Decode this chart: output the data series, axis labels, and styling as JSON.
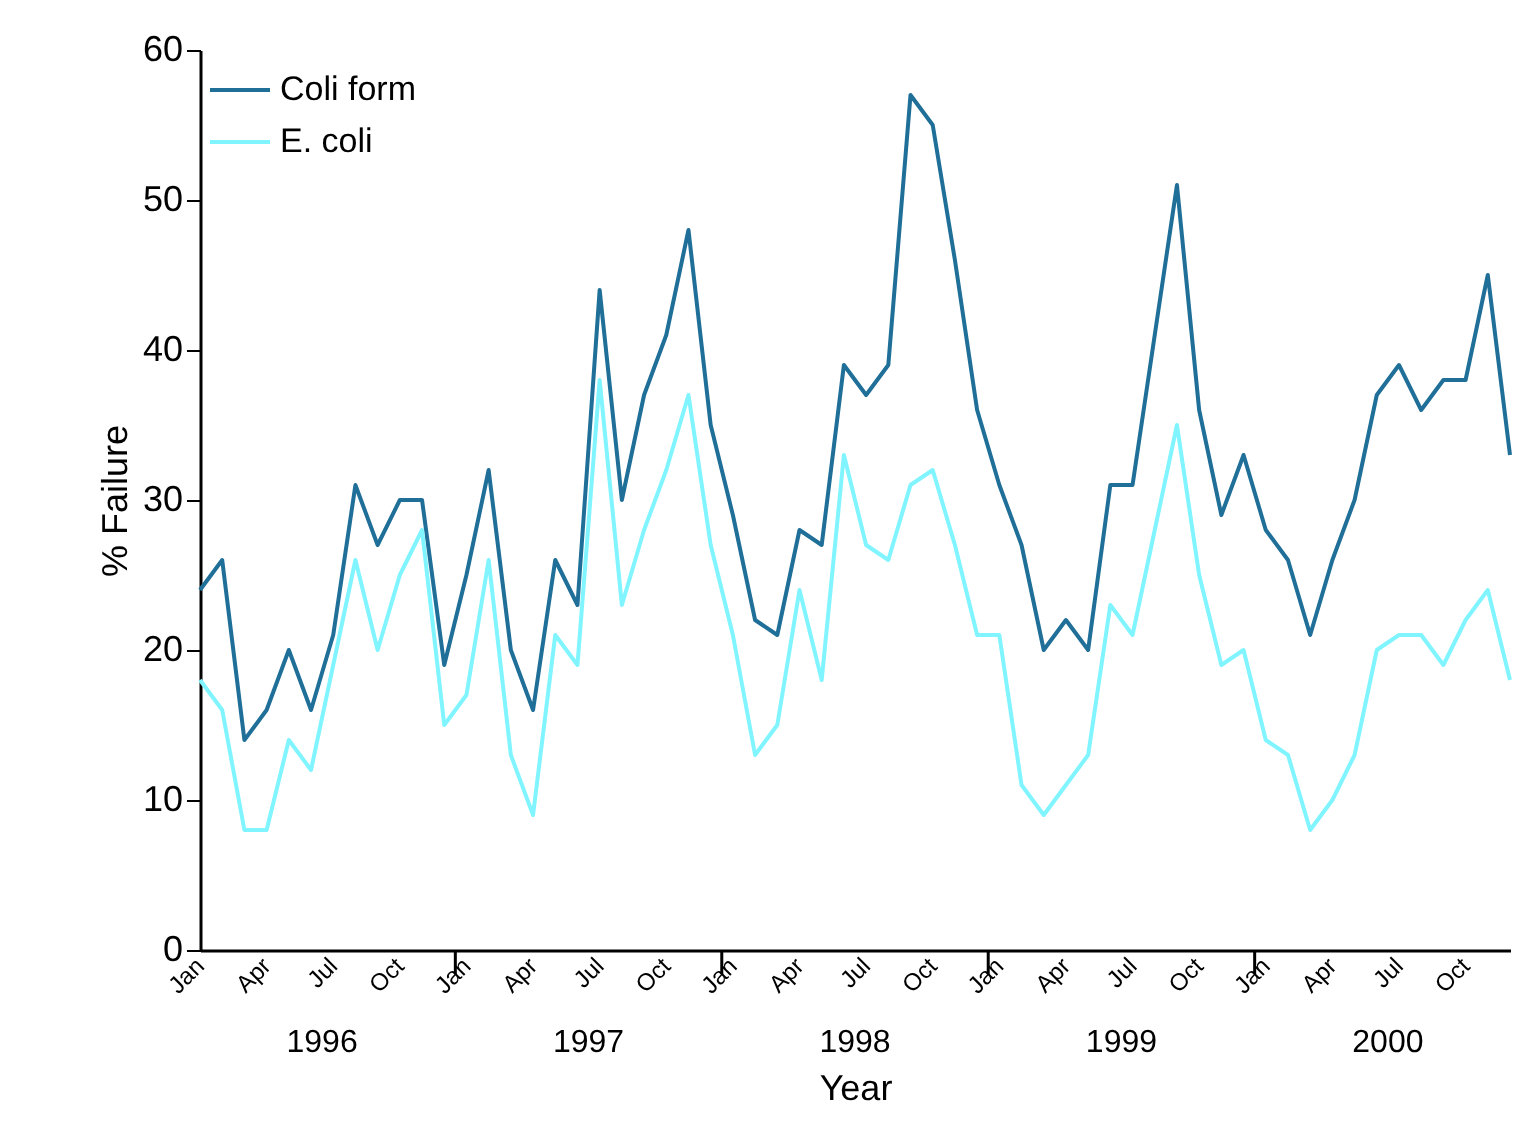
{
  "chart_data": {
    "type": "line",
    "xlabel": "Year",
    "ylabel": "% Failure",
    "categories": [
      "Jan",
      null,
      null,
      "Apr",
      null,
      null,
      "Jul",
      null,
      null,
      "Oct",
      null,
      null,
      "Jan",
      null,
      null,
      "Apr",
      null,
      null,
      "Jul",
      null,
      null,
      "Oct",
      null,
      null,
      "Jan",
      null,
      null,
      "Apr",
      null,
      null,
      "Jul",
      null,
      null,
      "Oct",
      null,
      null,
      "Jan",
      null,
      null,
      "Apr",
      null,
      null,
      "Jul",
      null,
      null,
      "Oct",
      null,
      null,
      "Jan",
      null,
      null,
      "Apr",
      null,
      null,
      "Jul",
      null,
      null,
      "Oct",
      null,
      null
    ],
    "series": [
      {
        "name": "Coli form",
        "color": "#1f6f98",
        "values": [
          24,
          26,
          14,
          16,
          20,
          16,
          21,
          31,
          27,
          30,
          30,
          19,
          25,
          32,
          20,
          16,
          26,
          23,
          44,
          30,
          37,
          41,
          48,
          35,
          29,
          22,
          21,
          28,
          27,
          39,
          37,
          39,
          57,
          55,
          46,
          36,
          31,
          27,
          20,
          22,
          20,
          31,
          31,
          41,
          51,
          36,
          29,
          33,
          28,
          26,
          21,
          26,
          30,
          37,
          39,
          36,
          38,
          38,
          45,
          33
        ]
      },
      {
        "name": "E. coli",
        "color": "#80f4ff",
        "values": [
          18,
          16,
          8,
          8,
          14,
          12,
          19,
          26,
          20,
          25,
          28,
          15,
          17,
          26,
          13,
          9,
          21,
          19,
          38,
          23,
          28,
          32,
          37,
          27,
          21,
          13,
          15,
          24,
          18,
          33,
          27,
          26,
          31,
          32,
          27,
          21,
          21,
          11,
          9,
          11,
          13,
          23,
          21,
          28,
          35,
          25,
          19,
          20,
          14,
          13,
          8,
          10,
          13,
          20,
          21,
          21,
          19,
          22,
          24,
          18
        ]
      }
    ],
    "annotations": [
      "1996",
      "1997",
      "1998",
      "1999",
      "2000"
    ],
    "ylim": [
      0,
      60
    ],
    "yticks": [
      0,
      10,
      20,
      30,
      40,
      50,
      60
    ],
    "grid": false,
    "legend": "top left",
    "marker": "none",
    "line_style": "solid"
  }
}
